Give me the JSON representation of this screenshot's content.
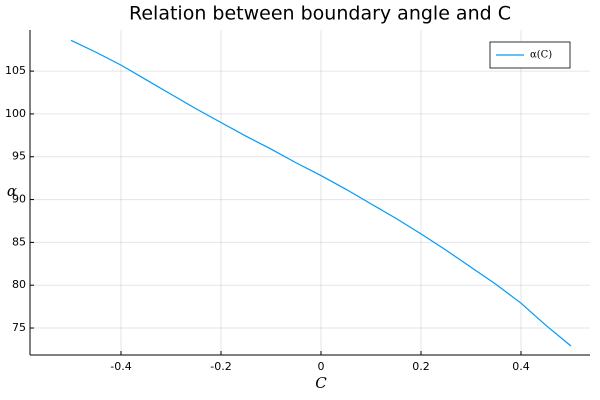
{
  "chart_data": {
    "type": "line",
    "title": "Relation between boundary angle and C",
    "x_label": "C",
    "y_label": "α",
    "x": [
      -0.5,
      -0.45,
      -0.4,
      -0.35,
      -0.3,
      -0.25,
      -0.2,
      -0.15,
      -0.1,
      -0.05,
      0,
      0.05,
      0.1,
      0.15,
      0.2,
      0.25,
      0.3,
      0.35,
      0.4,
      0.45,
      0.5
    ],
    "series": [
      {
        "name": "α(C)",
        "color": "#009af9",
        "values": [
          108.6,
          107.2,
          105.7,
          104.0,
          102.3,
          100.6,
          99.0,
          97.4,
          95.9,
          94.3,
          92.8,
          91.2,
          89.5,
          87.8,
          86.0,
          84.1,
          82.1,
          80.1,
          77.9,
          75.3,
          72.9
        ]
      }
    ],
    "xlim": [
      -0.582,
      0.538
    ],
    "ylim": [
      71.85,
      109.8
    ],
    "xticks": [
      -0.4,
      -0.2,
      0.0,
      0.2,
      0.4
    ],
    "yticks": [
      75,
      80,
      85,
      90,
      95,
      100,
      105
    ],
    "grid": true,
    "legend": "top-right"
  }
}
